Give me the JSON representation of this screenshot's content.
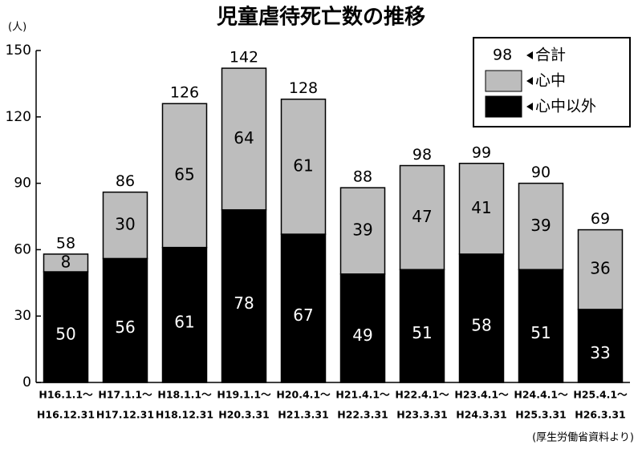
{
  "chart_data": {
    "type": "stacked_bar",
    "title": "児童虐待死亡数の推移",
    "y_unit": "(人)",
    "source": "(厚生労働省資料より)",
    "categories": [
      [
        "H16.1.1～",
        "H16.12.31"
      ],
      [
        "H17.1.1～",
        "H17.12.31"
      ],
      [
        "H18.1.1～",
        "H18.12.31"
      ],
      [
        "H19.1.1～",
        "H20.3.31"
      ],
      [
        "H20.4.1～",
        "H21.3.31"
      ],
      [
        "H21.4.1～",
        "H22.3.31"
      ],
      [
        "H22.4.1～",
        "H23.3.31"
      ],
      [
        "H23.4.1～",
        "H24.3.31"
      ],
      [
        "H24.4.1～",
        "H25.3.31"
      ],
      [
        "H25.4.1～",
        "H26.3.31"
      ]
    ],
    "series": [
      {
        "name": "心中以外",
        "color": "#000000",
        "label_color": "#ffffff",
        "values": [
          50,
          56,
          61,
          78,
          67,
          49,
          51,
          58,
          51,
          33
        ]
      },
      {
        "name": "心中",
        "color": "#bdbdbd",
        "label_color": "#000000",
        "values": [
          8,
          30,
          65,
          64,
          61,
          39,
          47,
          41,
          39,
          36
        ]
      }
    ],
    "totals": [
      58,
      86,
      126,
      142,
      128,
      88,
      98,
      99,
      90,
      69
    ],
    "total_name": "合計",
    "total_legend_sample": "98",
    "ylim": [
      0,
      150
    ],
    "yticks": [
      0,
      30,
      60,
      90,
      120,
      150
    ],
    "grid": false
  }
}
